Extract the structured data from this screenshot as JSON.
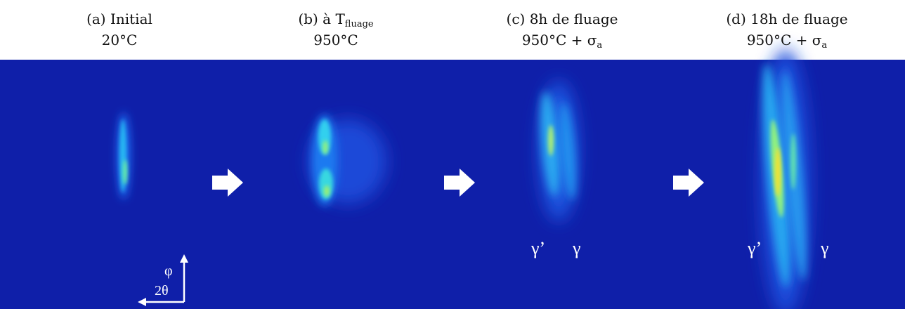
{
  "panels": [
    {
      "title": "(a) Initial",
      "condition": "20°C"
    },
    {
      "title": "(b) à T",
      "title_subscript": "fluage",
      "condition": "950°C"
    },
    {
      "title": "(c) 8h de fluage",
      "condition": "950°C + σ",
      "condition_subscript": "a",
      "phase_labels": [
        "γ’",
        "γ"
      ]
    },
    {
      "title": "(d) 18h de fluage",
      "condition": "950°C + σ",
      "condition_subscript": "a",
      "phase_labels": [
        "γ’",
        "γ"
      ]
    }
  ],
  "axes": {
    "vertical": "φ",
    "horizontal": "2θ"
  }
}
